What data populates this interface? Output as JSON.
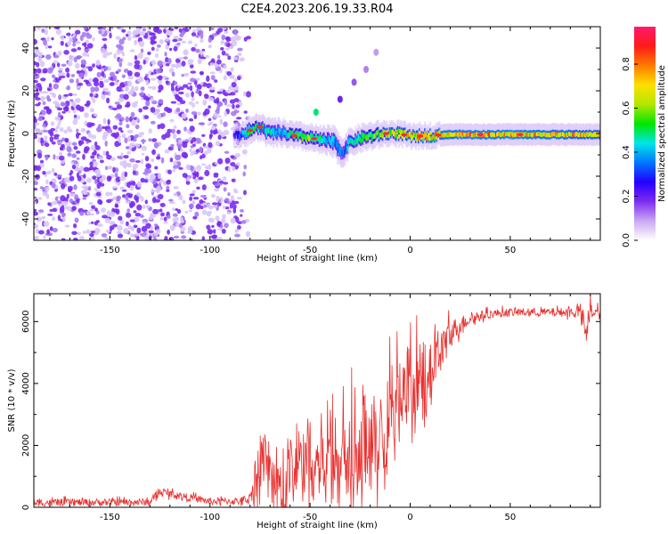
{
  "title": "C2E4.2023.206.19.33.R04",
  "chart_data": [
    {
      "type": "heatmap",
      "xlabel": "Height of straight line (km)",
      "ylabel": "Frequency (Hz)",
      "xlim": [
        -188,
        95
      ],
      "ylim": [
        -50,
        50
      ],
      "x_ticks": [
        "-150",
        "-100",
        "-50",
        "0",
        "50"
      ],
      "x_tick_values": [
        -150,
        -100,
        -50,
        0,
        50
      ],
      "y_ticks": [
        "-40",
        "-20",
        "0",
        "20",
        "40"
      ],
      "y_tick_values": [
        -40,
        -20,
        0,
        20,
        40
      ],
      "colorbar": {
        "label": "Normalized spectral amplitude",
        "ticks": [
          "0.0",
          "0.2",
          "0.4",
          "0.6",
          "0.8"
        ],
        "tick_values": [
          0.0,
          0.2,
          0.4,
          0.6,
          0.8
        ],
        "range": [
          0,
          0.97
        ],
        "colormap": [
          "#ffffff",
          "#c9a8f2",
          "#7e2cf0",
          "#2200ff",
          "#0077ff",
          "#00e6e6",
          "#00e600",
          "#b4e600",
          "#ffe000",
          "#ff7a00",
          "#ff1a1a",
          "#ff1a6e"
        ]
      },
      "noise_region": {
        "x_range": [
          -188,
          -85
        ],
        "freq_range": [
          -50,
          50
        ],
        "amplitude": 0.05
      },
      "signal_trace": [
        {
          "x": -88,
          "f": -1.5,
          "w": 1.2,
          "a": 0.25
        },
        {
          "x": -80,
          "f": 1.5,
          "w": 1.6,
          "a": 0.55
        },
        {
          "x": -75,
          "f": 3.0,
          "w": 1.6,
          "a": 0.45
        },
        {
          "x": -70,
          "f": 0.0,
          "w": 1.8,
          "a": 0.5
        },
        {
          "x": -65,
          "f": 0.5,
          "w": 1.6,
          "a": 0.45
        },
        {
          "x": -58,
          "f": -1.0,
          "w": 1.6,
          "a": 0.55
        },
        {
          "x": -50,
          "f": -2.0,
          "w": 1.6,
          "a": 0.6
        },
        {
          "x": -45,
          "f": -3.0,
          "w": 1.6,
          "a": 0.5
        },
        {
          "x": -38,
          "f": -4.0,
          "w": 2.0,
          "a": 0.45
        },
        {
          "x": -34,
          "f": -9.0,
          "w": 2.0,
          "a": 0.35
        },
        {
          "x": -30,
          "f": -4.0,
          "w": 1.6,
          "a": 0.5
        },
        {
          "x": -24,
          "f": -2.0,
          "w": 1.6,
          "a": 0.55
        },
        {
          "x": -18,
          "f": -1.0,
          "w": 1.6,
          "a": 0.6
        },
        {
          "x": -12,
          "f": 0.0,
          "w": 1.4,
          "a": 0.7
        },
        {
          "x": -5,
          "f": 0.0,
          "w": 1.4,
          "a": 0.7
        },
        {
          "x": 0,
          "f": -1.5,
          "w": 1.4,
          "a": 0.75
        },
        {
          "x": 8,
          "f": -1.0,
          "w": 1.4,
          "a": 0.75
        },
        {
          "x": 20,
          "f": -0.5,
          "w": 1.3,
          "a": 0.8
        },
        {
          "x": 35,
          "f": -0.5,
          "w": 1.3,
          "a": 0.82
        },
        {
          "x": 50,
          "f": -0.5,
          "w": 1.3,
          "a": 0.82
        },
        {
          "x": 65,
          "f": -0.5,
          "w": 1.3,
          "a": 0.8
        },
        {
          "x": 80,
          "f": -0.5,
          "w": 1.3,
          "a": 0.78
        },
        {
          "x": 95,
          "f": -0.5,
          "w": 1.3,
          "a": 0.75
        }
      ],
      "isolated_features": [
        {
          "x": -47,
          "f": 10,
          "a": 0.5
        },
        {
          "x": -35,
          "f": 16,
          "a": 0.2
        },
        {
          "x": -28,
          "f": 24,
          "a": 0.15
        },
        {
          "x": -22,
          "f": 30,
          "a": 0.12
        },
        {
          "x": -17,
          "f": 38,
          "a": 0.1
        }
      ]
    },
    {
      "type": "line",
      "xlabel": "Height of straight line (km)",
      "ylabel": "SNR (10 * v/v)",
      "xlim": [
        -188,
        95
      ],
      "ylim": [
        0,
        6900
      ],
      "x_ticks": [
        "-150",
        "-100",
        "-50",
        "0",
        "50"
      ],
      "x_tick_values": [
        -150,
        -100,
        -50,
        0,
        50
      ],
      "y_ticks": [
        "0",
        "2000",
        "4000",
        "6000"
      ],
      "y_tick_values": [
        0,
        2000,
        4000,
        6000
      ],
      "series": [
        {
          "color": "#e8302e",
          "x": [
            -188,
            -160,
            -130,
            -125,
            -100,
            -85,
            -80,
            -75,
            -70,
            -65,
            -60,
            -55,
            -50,
            -45,
            -40,
            -35,
            -30,
            -25,
            -20,
            -15,
            -10,
            -5,
            0,
            5,
            10,
            15,
            20,
            25,
            30,
            40,
            50,
            60,
            70,
            80,
            85,
            88,
            90,
            92,
            95
          ],
          "y": [
            150,
            160,
            170,
            500,
            190,
            200,
            300,
            1500,
            1200,
            1000,
            1300,
            1500,
            1700,
            1500,
            2000,
            2400,
            2000,
            2200,
            2300,
            2600,
            3200,
            3600,
            4000,
            4000,
            4400,
            5000,
            5600,
            5900,
            6100,
            6250,
            6300,
            6300,
            6300,
            6300,
            6350,
            5500,
            6400,
            6300,
            6250
          ],
          "spread": [
            150,
            150,
            150,
            150,
            150,
            150,
            200,
            1300,
            1300,
            1200,
            1500,
            1500,
            1800,
            1800,
            2300,
            2500,
            2300,
            2200,
            2200,
            2200,
            2000,
            1800,
            1700,
            1600,
            1400,
            1000,
            600,
            350,
            250,
            180,
            170,
            170,
            170,
            200,
            300,
            400,
            400,
            300,
            250
          ]
        }
      ]
    }
  ]
}
